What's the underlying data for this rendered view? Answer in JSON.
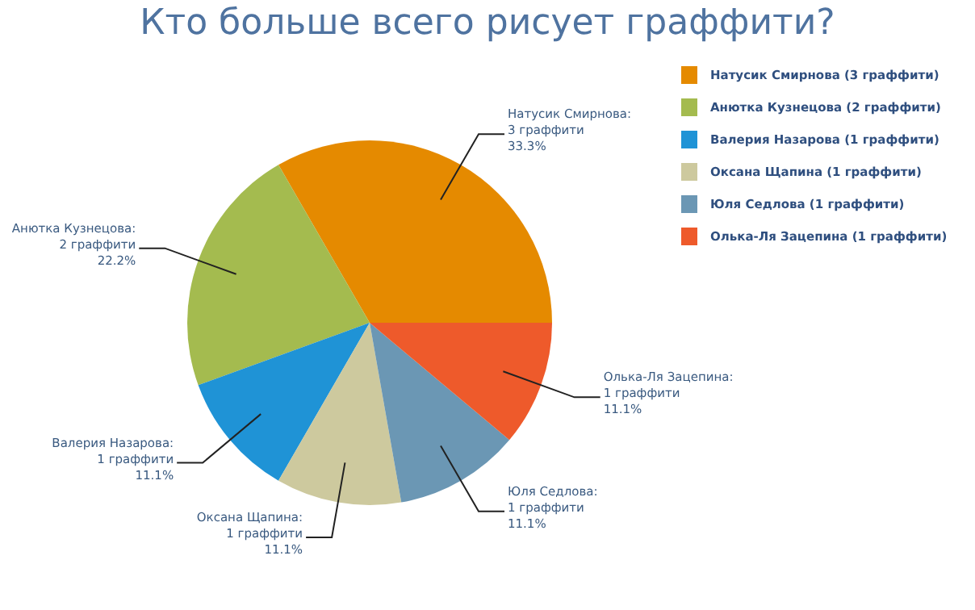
{
  "chart_data": {
    "type": "pie",
    "title": "Кто больше всего рисует граффити?",
    "categories": [
      "Натусик Смирнова (3 граффити)",
      "Анютка Кузнецова (2 граффити)",
      "Валерия Назарова (1 граффити)",
      "Оксана Щапина (1 граффити)",
      "Юля Седлова (1 граффити)",
      "Олька-Ля Зацепина (1 граффити)"
    ],
    "values": [
      3,
      2,
      1,
      1,
      1,
      1
    ],
    "colors": [
      "#e58a00",
      "#a4bb4f",
      "#1f93d6",
      "#cdc99e",
      "#6b97b4",
      "#ee5a2b"
    ],
    "value_labels": [
      "Натусик Смирнова:\n3 граффити\n33.3%",
      "Анютка Кузнецова:\n2 граффити\n22.2%",
      "Валерия Назарова:\n1 граффити\n11.1%",
      "Оксана Щапина:\n1 граффити\n11.1%",
      "Юля Седлова:\n1 граффити\n11.1%",
      "Олька-Ля Зацепина:\n1 граффити\n11.1%"
    ],
    "legend": "top right"
  }
}
